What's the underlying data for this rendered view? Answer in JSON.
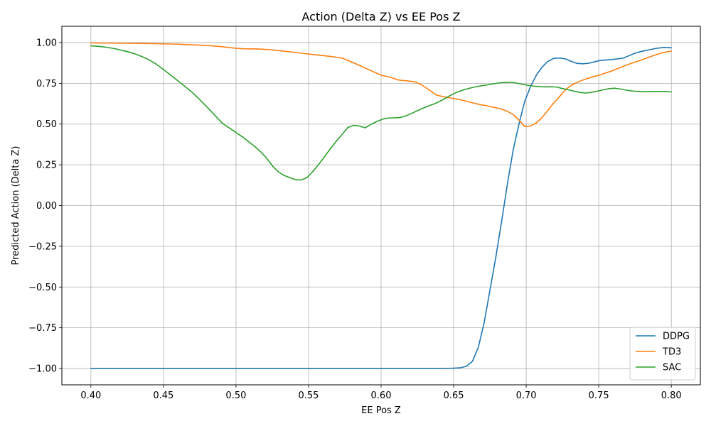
{
  "chart_data": {
    "type": "line",
    "title": "Action (Delta Z) vs EE Pos Z",
    "xlabel": "EE Pos Z",
    "ylabel": "Predicted Action (Delta Z)",
    "xlim": [
      0.38,
      0.82
    ],
    "ylim": [
      -1.1,
      1.1
    ],
    "xticks": [
      0.4,
      0.45,
      0.5,
      0.55,
      0.6,
      0.65,
      0.7,
      0.75,
      0.8
    ],
    "xtick_labels": [
      "0.40",
      "0.45",
      "0.50",
      "0.55",
      "0.60",
      "0.65",
      "0.70",
      "0.75",
      "0.80"
    ],
    "yticks": [
      -1.0,
      -0.75,
      -0.5,
      -0.25,
      0.0,
      0.25,
      0.5,
      0.75,
      1.0
    ],
    "ytick_labels": [
      "−1.00",
      "−0.75",
      "−0.50",
      "−0.25",
      "0.00",
      "0.25",
      "0.50",
      "0.75",
      "1.00"
    ],
    "grid": true,
    "legend_position": "lower-right",
    "series": [
      {
        "name": "DDPG",
        "color": "#1f77b4",
        "points": [
          [
            0.4,
            -1.0
          ],
          [
            0.45,
            -1.0
          ],
          [
            0.5,
            -1.0
          ],
          [
            0.55,
            -1.0
          ],
          [
            0.6,
            -1.0
          ],
          [
            0.64,
            -1.0
          ],
          [
            0.65,
            -0.998
          ],
          [
            0.655,
            -0.995
          ],
          [
            0.659,
            -0.985
          ],
          [
            0.663,
            -0.955
          ],
          [
            0.667,
            -0.87
          ],
          [
            0.671,
            -0.72
          ],
          [
            0.675,
            -0.52
          ],
          [
            0.679,
            -0.32
          ],
          [
            0.683,
            -0.1
          ],
          [
            0.687,
            0.13
          ],
          [
            0.691,
            0.34
          ],
          [
            0.695,
            0.5
          ],
          [
            0.699,
            0.64
          ],
          [
            0.703,
            0.73
          ],
          [
            0.707,
            0.8
          ],
          [
            0.711,
            0.85
          ],
          [
            0.715,
            0.885
          ],
          [
            0.719,
            0.903
          ],
          [
            0.723,
            0.905
          ],
          [
            0.727,
            0.9
          ],
          [
            0.731,
            0.885
          ],
          [
            0.735,
            0.872
          ],
          [
            0.739,
            0.87
          ],
          [
            0.743,
            0.873
          ],
          [
            0.747,
            0.882
          ],
          [
            0.751,
            0.89
          ],
          [
            0.755,
            0.893
          ],
          [
            0.759,
            0.896
          ],
          [
            0.763,
            0.9
          ],
          [
            0.767,
            0.905
          ],
          [
            0.771,
            0.92
          ],
          [
            0.775,
            0.935
          ],
          [
            0.779,
            0.945
          ],
          [
            0.783,
            0.952
          ],
          [
            0.787,
            0.96
          ],
          [
            0.791,
            0.966
          ],
          [
            0.795,
            0.97
          ],
          [
            0.8,
            0.968
          ]
        ]
      },
      {
        "name": "TD3",
        "color": "#ff7f0e",
        "points": [
          [
            0.4,
            0.998
          ],
          [
            0.42,
            0.996
          ],
          [
            0.44,
            0.994
          ],
          [
            0.46,
            0.99
          ],
          [
            0.48,
            0.982
          ],
          [
            0.49,
            0.975
          ],
          [
            0.5,
            0.965
          ],
          [
            0.505,
            0.962
          ],
          [
            0.515,
            0.961
          ],
          [
            0.525,
            0.955
          ],
          [
            0.535,
            0.945
          ],
          [
            0.545,
            0.935
          ],
          [
            0.555,
            0.925
          ],
          [
            0.565,
            0.915
          ],
          [
            0.573,
            0.905
          ],
          [
            0.58,
            0.88
          ],
          [
            0.59,
            0.84
          ],
          [
            0.6,
            0.8
          ],
          [
            0.606,
            0.788
          ],
          [
            0.612,
            0.77
          ],
          [
            0.618,
            0.765
          ],
          [
            0.623,
            0.76
          ],
          [
            0.628,
            0.74
          ],
          [
            0.633,
            0.71
          ],
          [
            0.638,
            0.678
          ],
          [
            0.643,
            0.668
          ],
          [
            0.648,
            0.66
          ],
          [
            0.653,
            0.652
          ],
          [
            0.658,
            0.642
          ],
          [
            0.663,
            0.63
          ],
          [
            0.668,
            0.62
          ],
          [
            0.673,
            0.612
          ],
          [
            0.678,
            0.602
          ],
          [
            0.683,
            0.592
          ],
          [
            0.687,
            0.578
          ],
          [
            0.691,
            0.558
          ],
          [
            0.695,
            0.525
          ],
          [
            0.699,
            0.485
          ],
          [
            0.703,
            0.488
          ],
          [
            0.707,
            0.508
          ],
          [
            0.711,
            0.54
          ],
          [
            0.715,
            0.585
          ],
          [
            0.719,
            0.63
          ],
          [
            0.723,
            0.668
          ],
          [
            0.727,
            0.71
          ],
          [
            0.731,
            0.738
          ],
          [
            0.735,
            0.755
          ],
          [
            0.739,
            0.77
          ],
          [
            0.743,
            0.782
          ],
          [
            0.747,
            0.792
          ],
          [
            0.751,
            0.802
          ],
          [
            0.755,
            0.814
          ],
          [
            0.759,
            0.826
          ],
          [
            0.763,
            0.84
          ],
          [
            0.767,
            0.855
          ],
          [
            0.771,
            0.868
          ],
          [
            0.775,
            0.88
          ],
          [
            0.779,
            0.892
          ],
          [
            0.783,
            0.905
          ],
          [
            0.787,
            0.918
          ],
          [
            0.791,
            0.93
          ],
          [
            0.795,
            0.94
          ],
          [
            0.8,
            0.948
          ]
        ]
      },
      {
        "name": "SAC",
        "color": "#2ca02c",
        "points": [
          [
            0.4,
            0.98
          ],
          [
            0.405,
            0.977
          ],
          [
            0.41,
            0.972
          ],
          [
            0.415,
            0.965
          ],
          [
            0.42,
            0.955
          ],
          [
            0.425,
            0.945
          ],
          [
            0.43,
            0.932
          ],
          [
            0.435,
            0.915
          ],
          [
            0.44,
            0.895
          ],
          [
            0.445,
            0.868
          ],
          [
            0.45,
            0.835
          ],
          [
            0.455,
            0.8
          ],
          [
            0.46,
            0.765
          ],
          [
            0.465,
            0.73
          ],
          [
            0.47,
            0.693
          ],
          [
            0.475,
            0.65
          ],
          [
            0.48,
            0.605
          ],
          [
            0.485,
            0.558
          ],
          [
            0.49,
            0.51
          ],
          [
            0.493,
            0.49
          ],
          [
            0.497,
            0.467
          ],
          [
            0.501,
            0.442
          ],
          [
            0.505,
            0.418
          ],
          [
            0.509,
            0.39
          ],
          [
            0.513,
            0.362
          ],
          [
            0.517,
            0.33
          ],
          [
            0.521,
            0.292
          ],
          [
            0.525,
            0.245
          ],
          [
            0.529,
            0.208
          ],
          [
            0.533,
            0.185
          ],
          [
            0.537,
            0.172
          ],
          [
            0.541,
            0.158
          ],
          [
            0.545,
            0.157
          ],
          [
            0.549,
            0.172
          ],
          [
            0.553,
            0.21
          ],
          [
            0.557,
            0.252
          ],
          [
            0.561,
            0.3
          ],
          [
            0.565,
            0.348
          ],
          [
            0.569,
            0.393
          ],
          [
            0.573,
            0.435
          ],
          [
            0.577,
            0.478
          ],
          [
            0.581,
            0.492
          ],
          [
            0.585,
            0.488
          ],
          [
            0.589,
            0.477
          ],
          [
            0.593,
            0.498
          ],
          [
            0.597,
            0.515
          ],
          [
            0.601,
            0.53
          ],
          [
            0.605,
            0.537
          ],
          [
            0.609,
            0.538
          ],
          [
            0.613,
            0.54
          ],
          [
            0.617,
            0.55
          ],
          [
            0.621,
            0.565
          ],
          [
            0.625,
            0.582
          ],
          [
            0.629,
            0.598
          ],
          [
            0.633,
            0.612
          ],
          [
            0.637,
            0.625
          ],
          [
            0.641,
            0.642
          ],
          [
            0.645,
            0.662
          ],
          [
            0.649,
            0.682
          ],
          [
            0.653,
            0.698
          ],
          [
            0.657,
            0.71
          ],
          [
            0.661,
            0.72
          ],
          [
            0.665,
            0.728
          ],
          [
            0.669,
            0.735
          ],
          [
            0.673,
            0.74
          ],
          [
            0.677,
            0.746
          ],
          [
            0.681,
            0.752
          ],
          [
            0.685,
            0.755
          ],
          [
            0.689,
            0.757
          ],
          [
            0.693,
            0.752
          ],
          [
            0.697,
            0.745
          ],
          [
            0.701,
            0.738
          ],
          [
            0.705,
            0.733
          ],
          [
            0.709,
            0.73
          ],
          [
            0.713,
            0.728
          ],
          [
            0.717,
            0.729
          ],
          [
            0.721,
            0.727
          ],
          [
            0.725,
            0.718
          ],
          [
            0.729,
            0.71
          ],
          [
            0.733,
            0.702
          ],
          [
            0.737,
            0.694
          ],
          [
            0.741,
            0.69
          ],
          [
            0.745,
            0.695
          ],
          [
            0.749,
            0.702
          ],
          [
            0.753,
            0.71
          ],
          [
            0.757,
            0.717
          ],
          [
            0.761,
            0.72
          ],
          [
            0.765,
            0.715
          ],
          [
            0.769,
            0.708
          ],
          [
            0.773,
            0.703
          ],
          [
            0.777,
            0.7
          ],
          [
            0.781,
            0.699
          ],
          [
            0.785,
            0.699
          ],
          [
            0.789,
            0.7
          ],
          [
            0.793,
            0.7
          ],
          [
            0.797,
            0.699
          ],
          [
            0.8,
            0.697
          ]
        ]
      }
    ]
  }
}
